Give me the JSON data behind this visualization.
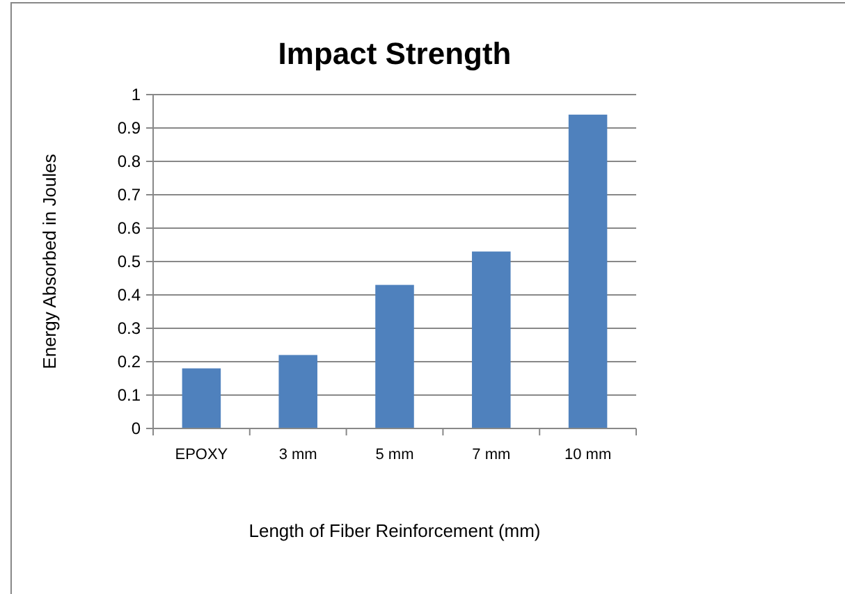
{
  "chart_data": {
    "type": "bar",
    "title": "Impact Strength",
    "xlabel": "Length of Fiber Reinforcement (mm)",
    "ylabel": "Energy Absorbed in Joules",
    "categories": [
      "EPOXY",
      "3 mm",
      "5 mm",
      "7 mm",
      "10 mm"
    ],
    "values": [
      0.18,
      0.22,
      0.43,
      0.53,
      0.94
    ],
    "color": "#4f81bd",
    "ylim": [
      0,
      1
    ],
    "yticks": [
      0,
      0.1,
      0.2,
      0.3,
      0.4,
      0.5,
      0.6,
      0.7,
      0.8,
      0.9,
      1
    ],
    "grid": "y"
  }
}
